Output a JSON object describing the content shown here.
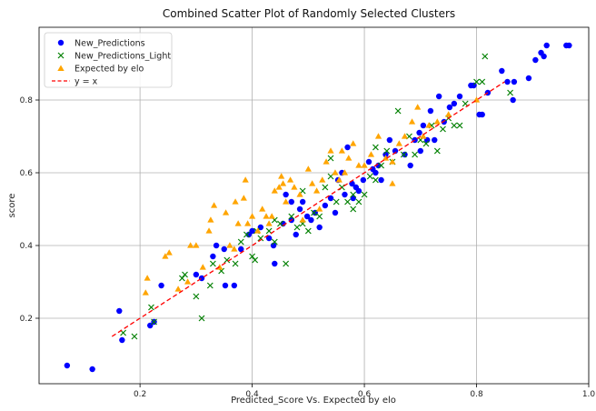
{
  "chart_data": {
    "type": "scatter",
    "title": "Combined Scatter Plot of Randomly Selected Clusters",
    "xlabel": "Predicted_Score Vs. Expected by elo",
    "ylabel": "score",
    "xlim": [
      0.02,
      1.0
    ],
    "ylim": [
      0.02,
      1.0
    ],
    "xticks": [
      0.2,
      0.4,
      0.6,
      0.8,
      1.0
    ],
    "yticks": [
      0.2,
      0.4,
      0.6,
      0.8
    ],
    "xtick_labels": [
      "0.2",
      "0.4",
      "0.6",
      "0.8",
      "1.0"
    ],
    "ytick_labels": [
      "0.2",
      "0.4",
      "0.6",
      "0.8"
    ],
    "grid": true,
    "legend_position": "top-left",
    "series": [
      {
        "name": "New_Predictions",
        "marker": "circle",
        "color": "#0000ff",
        "points": [
          [
            0.07,
            0.07
          ],
          [
            0.115,
            0.06
          ],
          [
            0.163,
            0.22
          ],
          [
            0.168,
            0.14
          ],
          [
            0.218,
            0.18
          ],
          [
            0.225,
            0.19
          ],
          [
            0.238,
            0.29
          ],
          [
            0.3,
            0.32
          ],
          [
            0.31,
            0.31
          ],
          [
            0.33,
            0.37
          ],
          [
            0.336,
            0.4
          ],
          [
            0.352,
            0.29
          ],
          [
            0.368,
            0.29
          ],
          [
            0.38,
            0.39
          ],
          [
            0.394,
            0.43
          ],
          [
            0.4,
            0.44
          ],
          [
            0.415,
            0.45
          ],
          [
            0.43,
            0.42
          ],
          [
            0.438,
            0.4
          ],
          [
            0.44,
            0.35
          ],
          [
            0.455,
            0.46
          ],
          [
            0.46,
            0.54
          ],
          [
            0.47,
            0.52
          ],
          [
            0.478,
            0.43
          ],
          [
            0.485,
            0.5
          ],
          [
            0.49,
            0.52
          ],
          [
            0.498,
            0.48
          ],
          [
            0.505,
            0.47
          ],
          [
            0.512,
            0.49
          ],
          [
            0.52,
            0.45
          ],
          [
            0.53,
            0.51
          ],
          [
            0.54,
            0.53
          ],
          [
            0.548,
            0.49
          ],
          [
            0.553,
            0.58
          ],
          [
            0.56,
            0.6
          ],
          [
            0.565,
            0.54
          ],
          [
            0.57,
            0.67
          ],
          [
            0.578,
            0.57
          ],
          [
            0.585,
            0.56
          ],
          [
            0.59,
            0.55
          ],
          [
            0.598,
            0.58
          ],
          [
            0.608,
            0.63
          ],
          [
            0.615,
            0.61
          ],
          [
            0.625,
            0.62
          ],
          [
            0.63,
            0.58
          ],
          [
            0.638,
            0.65
          ],
          [
            0.645,
            0.69
          ],
          [
            0.655,
            0.66
          ],
          [
            0.672,
            0.65
          ],
          [
            0.682,
            0.62
          ],
          [
            0.69,
            0.69
          ],
          [
            0.698,
            0.71
          ],
          [
            0.705,
            0.73
          ],
          [
            0.712,
            0.69
          ],
          [
            0.718,
            0.77
          ],
          [
            0.725,
            0.69
          ],
          [
            0.733,
            0.81
          ],
          [
            0.742,
            0.74
          ],
          [
            0.752,
            0.78
          ],
          [
            0.76,
            0.79
          ],
          [
            0.77,
            0.81
          ],
          [
            0.79,
            0.84
          ],
          [
            0.795,
            0.84
          ],
          [
            0.805,
            0.76
          ],
          [
            0.81,
            0.76
          ],
          [
            0.82,
            0.82
          ],
          [
            0.845,
            0.88
          ],
          [
            0.855,
            0.85
          ],
          [
            0.865,
            0.8
          ],
          [
            0.867,
            0.85
          ],
          [
            0.893,
            0.86
          ],
          [
            0.905,
            0.91
          ],
          [
            0.915,
            0.93
          ],
          [
            0.925,
            0.95
          ],
          [
            0.92,
            0.92
          ],
          [
            0.96,
            0.95
          ],
          [
            0.965,
            0.95
          ],
          [
            0.35,
            0.39
          ],
          [
            0.58,
            0.53
          ],
          [
            0.7,
            0.66
          ],
          [
            0.47,
            0.47
          ],
          [
            0.62,
            0.6
          ]
        ]
      },
      {
        "name": "New_Predictions_Light",
        "marker": "x",
        "color": "#008000",
        "points": [
          [
            0.17,
            0.16
          ],
          [
            0.19,
            0.15
          ],
          [
            0.22,
            0.23
          ],
          [
            0.225,
            0.19
          ],
          [
            0.275,
            0.31
          ],
          [
            0.28,
            0.32
          ],
          [
            0.3,
            0.26
          ],
          [
            0.31,
            0.2
          ],
          [
            0.325,
            0.29
          ],
          [
            0.33,
            0.35
          ],
          [
            0.345,
            0.33
          ],
          [
            0.355,
            0.36
          ],
          [
            0.37,
            0.35
          ],
          [
            0.38,
            0.41
          ],
          [
            0.39,
            0.43
          ],
          [
            0.4,
            0.37
          ],
          [
            0.405,
            0.36
          ],
          [
            0.408,
            0.44
          ],
          [
            0.415,
            0.42
          ],
          [
            0.43,
            0.44
          ],
          [
            0.44,
            0.41
          ],
          [
            0.45,
            0.46
          ],
          [
            0.46,
            0.35
          ],
          [
            0.47,
            0.48
          ],
          [
            0.48,
            0.45
          ],
          [
            0.49,
            0.46
          ],
          [
            0.5,
            0.44
          ],
          [
            0.51,
            0.49
          ],
          [
            0.52,
            0.48
          ],
          [
            0.53,
            0.56
          ],
          [
            0.54,
            0.59
          ],
          [
            0.55,
            0.52
          ],
          [
            0.56,
            0.56
          ],
          [
            0.57,
            0.52
          ],
          [
            0.58,
            0.5
          ],
          [
            0.59,
            0.52
          ],
          [
            0.6,
            0.54
          ],
          [
            0.61,
            0.59
          ],
          [
            0.62,
            0.58
          ],
          [
            0.63,
            0.62
          ],
          [
            0.64,
            0.66
          ],
          [
            0.65,
            0.63
          ],
          [
            0.66,
            0.77
          ],
          [
            0.67,
            0.65
          ],
          [
            0.68,
            0.7
          ],
          [
            0.69,
            0.65
          ],
          [
            0.7,
            0.69
          ],
          [
            0.71,
            0.68
          ],
          [
            0.72,
            0.73
          ],
          [
            0.73,
            0.66
          ],
          [
            0.74,
            0.72
          ],
          [
            0.75,
            0.75
          ],
          [
            0.76,
            0.73
          ],
          [
            0.77,
            0.73
          ],
          [
            0.78,
            0.79
          ],
          [
            0.8,
            0.85
          ],
          [
            0.81,
            0.85
          ],
          [
            0.815,
            0.92
          ],
          [
            0.86,
            0.82
          ],
          [
            0.54,
            0.64
          ],
          [
            0.58,
            0.54
          ],
          [
            0.49,
            0.55
          ],
          [
            0.44,
            0.47
          ],
          [
            0.62,
            0.67
          ]
        ]
      },
      {
        "name": "Expected by elo",
        "marker": "triangle",
        "color": "#ffa500",
        "points": [
          [
            0.21,
            0.27
          ],
          [
            0.213,
            0.31
          ],
          [
            0.245,
            0.37
          ],
          [
            0.252,
            0.38
          ],
          [
            0.268,
            0.28
          ],
          [
            0.285,
            0.3
          ],
          [
            0.29,
            0.4
          ],
          [
            0.3,
            0.4
          ],
          [
            0.312,
            0.34
          ],
          [
            0.323,
            0.44
          ],
          [
            0.326,
            0.47
          ],
          [
            0.332,
            0.51
          ],
          [
            0.342,
            0.34
          ],
          [
            0.353,
            0.49
          ],
          [
            0.36,
            0.4
          ],
          [
            0.368,
            0.39
          ],
          [
            0.375,
            0.46
          ],
          [
            0.385,
            0.53
          ],
          [
            0.388,
            0.58
          ],
          [
            0.392,
            0.46
          ],
          [
            0.4,
            0.48
          ],
          [
            0.41,
            0.44
          ],
          [
            0.418,
            0.5
          ],
          [
            0.425,
            0.48
          ],
          [
            0.435,
            0.48
          ],
          [
            0.44,
            0.55
          ],
          [
            0.448,
            0.56
          ],
          [
            0.452,
            0.59
          ],
          [
            0.455,
            0.57
          ],
          [
            0.46,
            0.52
          ],
          [
            0.468,
            0.58
          ],
          [
            0.475,
            0.56
          ],
          [
            0.485,
            0.54
          ],
          [
            0.49,
            0.47
          ],
          [
            0.5,
            0.61
          ],
          [
            0.507,
            0.57
          ],
          [
            0.515,
            0.55
          ],
          [
            0.525,
            0.58
          ],
          [
            0.532,
            0.63
          ],
          [
            0.54,
            0.66
          ],
          [
            0.548,
            0.6
          ],
          [
            0.555,
            0.58
          ],
          [
            0.565,
            0.6
          ],
          [
            0.572,
            0.64
          ],
          [
            0.58,
            0.68
          ],
          [
            0.59,
            0.62
          ],
          [
            0.6,
            0.62
          ],
          [
            0.612,
            0.65
          ],
          [
            0.625,
            0.7
          ],
          [
            0.638,
            0.64
          ],
          [
            0.65,
            0.63
          ],
          [
            0.662,
            0.68
          ],
          [
            0.672,
            0.7
          ],
          [
            0.685,
            0.74
          ],
          [
            0.695,
            0.78
          ],
          [
            0.705,
            0.7
          ],
          [
            0.715,
            0.73
          ],
          [
            0.73,
            0.74
          ],
          [
            0.75,
            0.76
          ],
          [
            0.8,
            0.8
          ],
          [
            0.65,
            0.57
          ],
          [
            0.52,
            0.5
          ],
          [
            0.43,
            0.46
          ],
          [
            0.37,
            0.52
          ],
          [
            0.56,
            0.66
          ]
        ]
      },
      {
        "name": "y = x",
        "marker": "dashed-line",
        "color": "#ff0000",
        "points": [
          [
            0.15,
            0.15
          ],
          [
            0.85,
            0.85
          ]
        ]
      }
    ]
  }
}
